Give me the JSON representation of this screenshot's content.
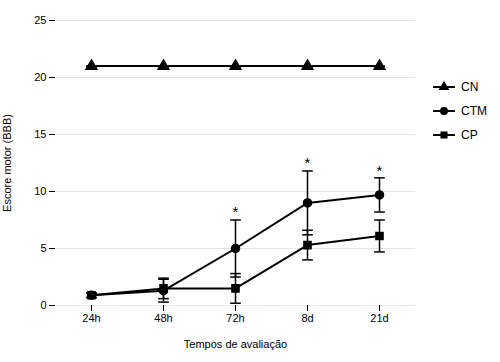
{
  "chart_data": {
    "type": "line",
    "xlabel": "Tempos de avaliação",
    "ylabel": "Escore motor (BBB)",
    "categories": [
      "24h",
      "48h",
      "72h",
      "8d",
      "21d"
    ],
    "series": [
      {
        "name": "CN",
        "color": "#000000",
        "marker": "triangle",
        "values": [
          21.0,
          21.0,
          21.0,
          21.0,
          21.0
        ],
        "yerr": [
          0.0,
          0.0,
          0.0,
          0.0,
          0.0
        ]
      },
      {
        "name": "CTM",
        "color": "#000000",
        "marker": "circle",
        "values": [
          0.9,
          1.3,
          5.0,
          9.0,
          9.7
        ],
        "yerr": [
          0.2,
          1.0,
          2.5,
          2.8,
          1.5
        ]
      },
      {
        "name": "CP",
        "color": "#000000",
        "marker": "square",
        "values": [
          0.9,
          1.5,
          1.5,
          5.3,
          6.1
        ],
        "yerr": [
          0.2,
          0.9,
          1.3,
          1.3,
          1.4
        ]
      }
    ],
    "annotations": [
      {
        "text": "*",
        "x": "72h",
        "y": 7.8
      },
      {
        "text": "*",
        "x": "8d",
        "y": 12.1
      },
      {
        "text": "*",
        "x": "21d",
        "y": 11.4
      }
    ],
    "ylim": [
      0,
      25
    ],
    "yticks": [
      0,
      5,
      10,
      15,
      20,
      25
    ],
    "grid": true,
    "legend": "right"
  }
}
